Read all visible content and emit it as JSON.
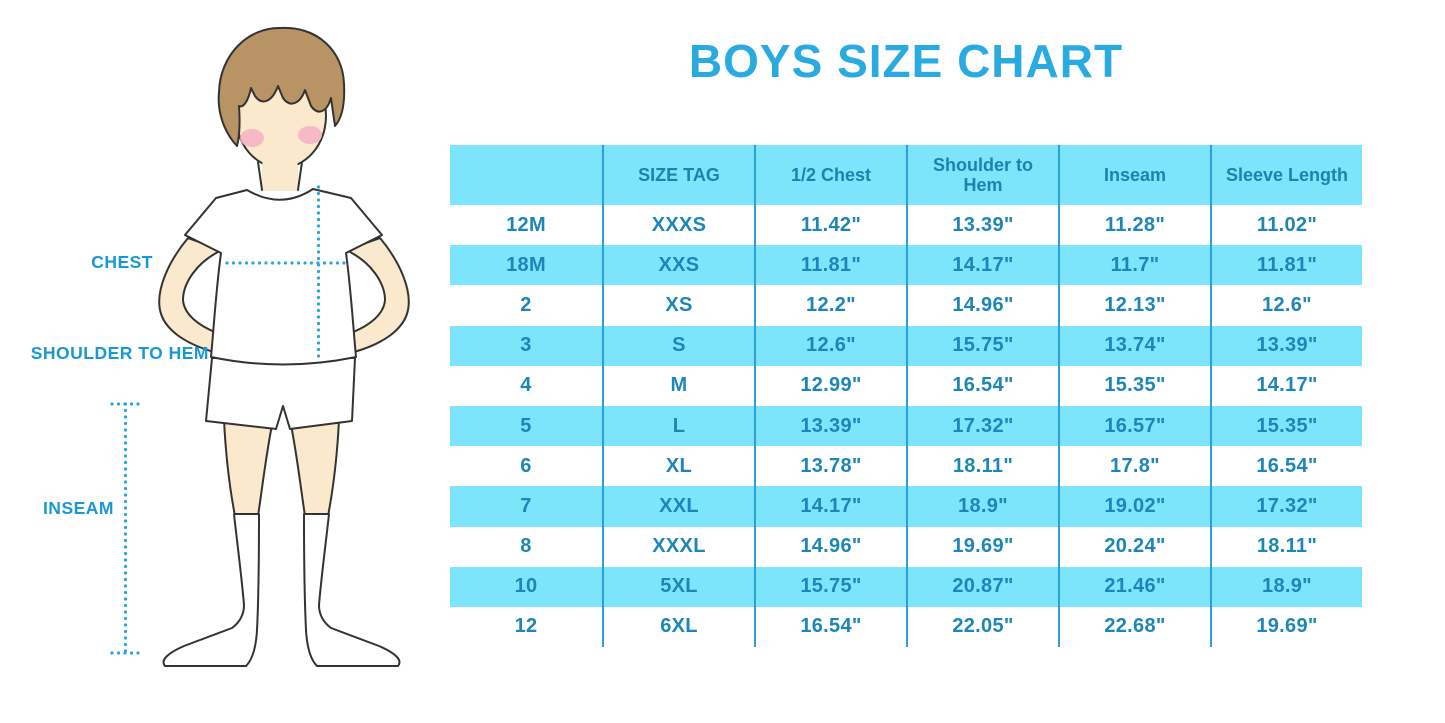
{
  "title": "BOYS SIZE CHART",
  "figure": {
    "labels": {
      "chest": "CHEST",
      "shoulder_to_hem": "SHOULDER TO HEM",
      "inseam": "INSEAM"
    }
  },
  "colors": {
    "title_blue": "#29abe2",
    "label_blue": "#1899d6",
    "band_cyan": "#7ce4fb",
    "grid_line_blue": "#2b9fd6",
    "cell_text_blue": "#1d86b8",
    "dotted_line_blue": "#29a6e0",
    "skin": "#fbe9cd",
    "hair_brown": "#b89364",
    "blush_pink": "#f5b5c5"
  },
  "chart_data": {
    "type": "table",
    "title": "BOYS SIZE CHART",
    "columns": [
      "",
      "SIZE TAG",
      "1/2 Chest",
      "Shoulder to Hem",
      "Inseam",
      "Sleeve Length"
    ],
    "rows": [
      [
        "12M",
        "XXXS",
        "11.42\"",
        "13.39\"",
        "11.28\"",
        "11.02\""
      ],
      [
        "18M",
        "XXS",
        "11.81\"",
        "14.17\"",
        "11.7\"",
        "11.81\""
      ],
      [
        "2",
        "XS",
        "12.2\"",
        "14.96\"",
        "12.13\"",
        "12.6\""
      ],
      [
        "3",
        "S",
        "12.6\"",
        "15.75\"",
        "13.74\"",
        "13.39\""
      ],
      [
        "4",
        "M",
        "12.99\"",
        "16.54\"",
        "15.35\"",
        "14.17\""
      ],
      [
        "5",
        "L",
        "13.39\"",
        "17.32\"",
        "16.57\"",
        "15.35\""
      ],
      [
        "6",
        "XL",
        "13.78\"",
        "18.11\"",
        "17.8\"",
        "16.54\""
      ],
      [
        "7",
        "XXL",
        "14.17\"",
        "18.9\"",
        "19.02\"",
        "17.32\""
      ],
      [
        "8",
        "XXXL",
        "14.96\"",
        "19.69\"",
        "20.24\"",
        "18.11\""
      ],
      [
        "10",
        "5XL",
        "15.75\"",
        "20.87\"",
        "21.46\"",
        "18.9\""
      ],
      [
        "12",
        "6XL",
        "16.54\"",
        "22.05\"",
        "22.68\"",
        "19.69\""
      ]
    ],
    "row_striping": "white/cyan alternating, header cyan",
    "grid": "vertical column separators only, no outer border"
  }
}
